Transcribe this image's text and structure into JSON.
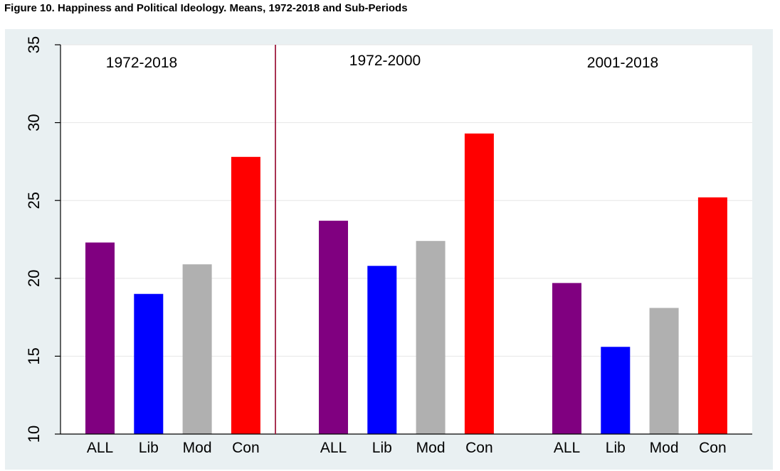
{
  "figure_title": "Figure 10. Happiness and Political Ideology.  Means, 1972-2018 and Sub-Periods",
  "chart_data": {
    "type": "bar",
    "title": "Figure 10. Happiness and Political Ideology.  Means, 1972-2018 and Sub-Periods",
    "ylim": [
      10,
      35
    ],
    "yticks": [
      "10",
      "15",
      "20",
      "25",
      "30",
      "35"
    ],
    "grid": true,
    "categories": [
      "ALL",
      "Lib",
      "Mod",
      "Con"
    ],
    "colors": {
      "ALL": "#800080",
      "Lib": "#0000ff",
      "Mod": "#b0b0b0",
      "Con": "#ff0000"
    },
    "divider_color": "#9e1c3f",
    "panels": [
      {
        "label": "1972-2018",
        "values": [
          22.3,
          19.0,
          20.9,
          27.8
        ]
      },
      {
        "label": "1972-2000",
        "values": [
          23.7,
          20.8,
          22.4,
          29.3
        ]
      },
      {
        "label": "2001-2018",
        "values": [
          19.7,
          15.6,
          18.1,
          25.2
        ]
      }
    ]
  }
}
